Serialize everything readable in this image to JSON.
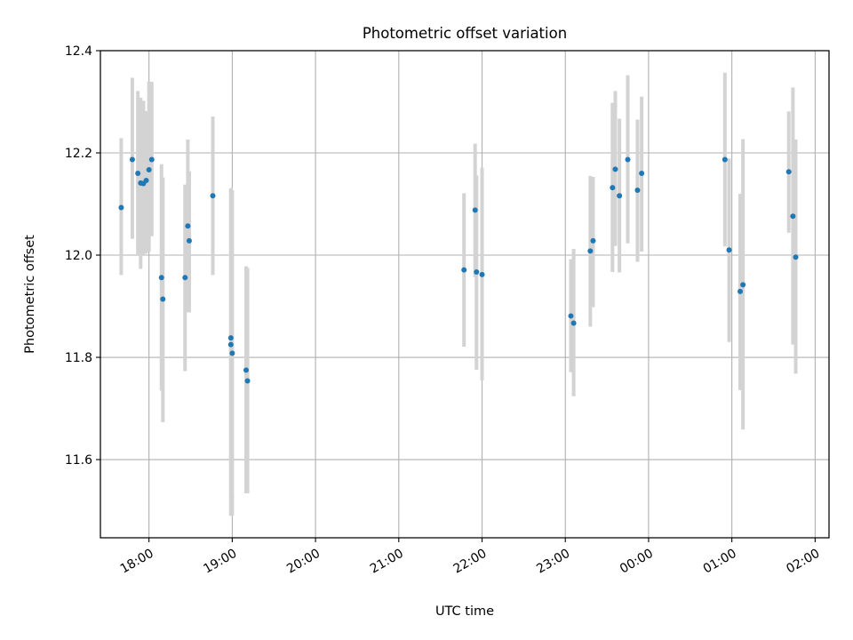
{
  "chart_data": {
    "type": "scatter",
    "title": "Photometric offset variation",
    "xlabel": "UTC time",
    "ylabel": "Photometric offset",
    "x_axis": {
      "kind": "time",
      "lim": [
        "17:25",
        "02:10 (+1 day)"
      ],
      "ticks": [
        {
          "t": "18:00",
          "label": "18:00"
        },
        {
          "t": "19:00",
          "label": "19:00"
        },
        {
          "t": "20:00",
          "label": "20:00"
        },
        {
          "t": "21:00",
          "label": "21:00"
        },
        {
          "t": "22:00",
          "label": "22:00"
        },
        {
          "t": "23:00",
          "label": "23:00"
        },
        {
          "t": "00:00",
          "label": "00:00"
        },
        {
          "t": "01:00",
          "label": "01:00"
        },
        {
          "t": "02:00",
          "label": "02:00"
        }
      ]
    },
    "y_axis": {
      "lim": [
        11.447,
        12.4
      ],
      "ticks": [
        {
          "v": 11.6,
          "label": "11.6"
        },
        {
          "v": 11.8,
          "label": "11.8"
        },
        {
          "v": 12.0,
          "label": "12.0"
        },
        {
          "v": 12.2,
          "label": "12.2"
        },
        {
          "v": 12.4,
          "label": "12.4"
        }
      ]
    },
    "grid": true,
    "colors": {
      "point": "#1f77b4",
      "errorbar": "#d3d3d3",
      "grid": "#b0b0b0"
    },
    "series": [
      {
        "points": [
          {
            "x": "17:40",
            "y": 12.093,
            "lo": 11.961,
            "hi": 12.229
          },
          {
            "x": "17:48",
            "y": 12.187,
            "lo": 12.032,
            "hi": 12.347
          },
          {
            "x": "17:52",
            "y": 12.16,
            "lo": 12.0,
            "hi": 12.321
          },
          {
            "x": "17:54",
            "y": 12.141,
            "lo": 11.973,
            "hi": 12.308
          },
          {
            "x": "17:56",
            "y": 12.14,
            "lo": 12.0,
            "hi": 12.302
          },
          {
            "x": "17:58",
            "y": 12.146,
            "lo": 12.003,
            "hi": 12.282
          },
          {
            "x": "18:00",
            "y": 12.167,
            "lo": 12.007,
            "hi": 12.34
          },
          {
            "x": "18:02",
            "y": 12.187,
            "lo": 12.037,
            "hi": 12.339
          },
          {
            "x": "18:09",
            "y": 11.956,
            "lo": 11.735,
            "hi": 12.178
          },
          {
            "x": "18:10",
            "y": 11.914,
            "lo": 11.673,
            "hi": 12.152
          },
          {
            "x": "18:26",
            "y": 11.956,
            "lo": 11.773,
            "hi": 12.138
          },
          {
            "x": "18:28",
            "y": 12.057,
            "lo": 11.888,
            "hi": 12.226
          },
          {
            "x": "18:29",
            "y": 12.028,
            "lo": 11.888,
            "hi": 12.164
          },
          {
            "x": "18:46",
            "y": 12.116,
            "lo": 11.961,
            "hi": 12.271
          },
          {
            "x": "18:59",
            "y": 11.838,
            "lo": 11.531,
            "hi": 12.128
          },
          {
            "x": "18:59",
            "y": 11.825,
            "lo": 11.49,
            "hi": 12.131
          },
          {
            "x": "19:00",
            "y": 11.808,
            "lo": 11.49,
            "hi": 12.127
          },
          {
            "x": "19:10",
            "y": 11.775,
            "lo": 11.534,
            "hi": 11.978
          },
          {
            "x": "19:11",
            "y": 11.754,
            "lo": 11.534,
            "hi": 11.975
          },
          {
            "x": "21:47",
            "y": 11.971,
            "lo": 11.821,
            "hi": 12.121
          },
          {
            "x": "21:55",
            "y": 12.088,
            "lo": 11.957,
            "hi": 12.218
          },
          {
            "x": "21:56",
            "y": 11.967,
            "lo": 11.776,
            "hi": 12.156
          },
          {
            "x": "22:00",
            "y": 11.962,
            "lo": 11.755,
            "hi": 12.171
          },
          {
            "x": "23:04",
            "y": 11.881,
            "lo": 11.771,
            "hi": 11.992
          },
          {
            "x": "23:06",
            "y": 11.867,
            "lo": 11.724,
            "hi": 12.012
          },
          {
            "x": "23:18",
            "y": 12.008,
            "lo": 11.86,
            "hi": 12.155
          },
          {
            "x": "23:20",
            "y": 12.028,
            "lo": 11.898,
            "hi": 12.153
          },
          {
            "x": "23:34",
            "y": 12.132,
            "lo": 11.967,
            "hi": 12.298
          },
          {
            "x": "23:36",
            "y": 12.168,
            "lo": 12.018,
            "hi": 12.321
          },
          {
            "x": "23:39",
            "y": 12.116,
            "lo": 11.966,
            "hi": 12.267
          },
          {
            "x": "23:45",
            "y": 12.187,
            "lo": 12.023,
            "hi": 12.352
          },
          {
            "x": "23:52",
            "y": 12.127,
            "lo": 11.987,
            "hi": 12.265
          },
          {
            "x": "23:55",
            "y": 12.16,
            "lo": 12.007,
            "hi": 12.31
          },
          {
            "x": "00:55",
            "y": 12.187,
            "lo": 12.017,
            "hi": 12.357
          },
          {
            "x": "00:58",
            "y": 12.01,
            "lo": 11.83,
            "hi": 12.189
          },
          {
            "x": "01:06",
            "y": 11.929,
            "lo": 11.736,
            "hi": 12.12
          },
          {
            "x": "01:08",
            "y": 11.942,
            "lo": 11.659,
            "hi": 12.227
          },
          {
            "x": "01:41",
            "y": 12.163,
            "lo": 12.044,
            "hi": 12.281
          },
          {
            "x": "01:44",
            "y": 12.076,
            "lo": 11.825,
            "hi": 12.328
          },
          {
            "x": "01:46",
            "y": 11.996,
            "lo": 11.768,
            "hi": 12.226
          }
        ]
      }
    ]
  }
}
